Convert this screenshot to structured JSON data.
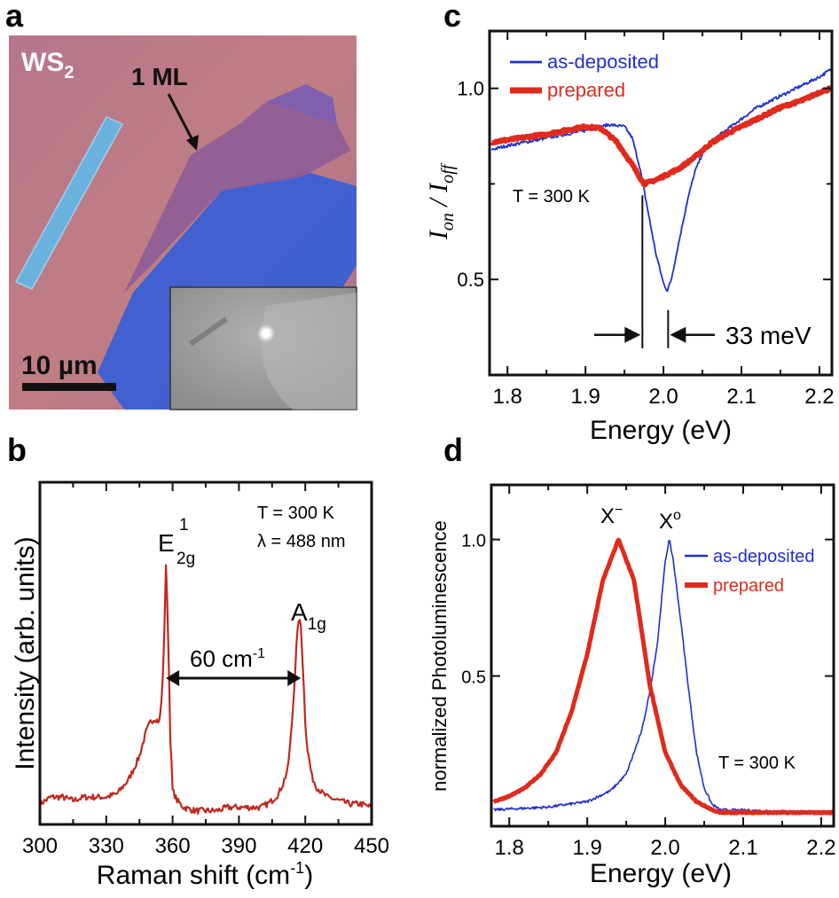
{
  "panel_labels": {
    "a": "a",
    "b": "b",
    "c": "c",
    "d": "d"
  },
  "photo": {
    "material_main": "WS",
    "material_sub": "2",
    "monolayer_label": "1 ML",
    "scale_bar_label": "10 µm",
    "colors": {
      "substrate": "#b97a8a",
      "thick_flake": "#3b5fd4",
      "monolayer": "#8b5a98",
      "stripe": "#6ab2de",
      "inset": "#9a9a9a"
    }
  },
  "colors": {
    "as_deposited": "#1f2fd0",
    "prepared": "#e02a1c",
    "raman": "#c0281e"
  },
  "chart_data": [
    {
      "panel": "b",
      "type": "line",
      "xlabel": "Raman shift (cm",
      "xlabel_sup": "-1",
      "xlabel_end": ")",
      "ylabel": "Intensity (arb. units)",
      "xlim": [
        300,
        450
      ],
      "ylim": [
        0,
        1
      ],
      "xticks": [
        "300",
        "330",
        "360",
        "390",
        "420",
        "450"
      ],
      "grid": false,
      "annotations": {
        "temp": "T = 300 K",
        "wavelength": "λ = 488 nm",
        "peak1_main": "E",
        "peak1_sup": "1",
        "peak1_sub": "2g",
        "peak2_main": "A",
        "peak2_sub": "1g",
        "separation_main": "60 cm",
        "separation_sup": "-1"
      },
      "series": [
        {
          "x": [
            300,
            305,
            310,
            315,
            320,
            325,
            330,
            335,
            340,
            343,
            345,
            348,
            350,
            352,
            354,
            355,
            356,
            357,
            358,
            359,
            360,
            362,
            365,
            370,
            375,
            380,
            385,
            390,
            395,
            400,
            403,
            405,
            408,
            410,
            412,
            413,
            414,
            415,
            416,
            417,
            418,
            419,
            420,
            421,
            423,
            425,
            428,
            430,
            435,
            440,
            445,
            450
          ],
          "y": [
            0.06,
            0.08,
            0.08,
            0.07,
            0.08,
            0.08,
            0.08,
            0.09,
            0.13,
            0.17,
            0.2,
            0.27,
            0.3,
            0.31,
            0.3,
            0.36,
            0.5,
            0.76,
            0.55,
            0.25,
            0.1,
            0.07,
            0.05,
            0.04,
            0.04,
            0.04,
            0.05,
            0.05,
            0.05,
            0.05,
            0.06,
            0.07,
            0.09,
            0.12,
            0.16,
            0.22,
            0.3,
            0.4,
            0.52,
            0.6,
            0.58,
            0.45,
            0.3,
            0.22,
            0.14,
            0.11,
            0.09,
            0.08,
            0.07,
            0.06,
            0.06,
            0.05
          ]
        }
      ]
    },
    {
      "panel": "c",
      "type": "line",
      "xlabel": "Energy (eV)",
      "ylabel_I1": "I",
      "ylabel_sub1": "on",
      "ylabel_sep": " / ",
      "ylabel_I2": "I",
      "ylabel_sub2": "off",
      "xlim": [
        1.777,
        2.216
      ],
      "ylim": [
        0.25,
        1.15
      ],
      "xticks": [
        "1.8",
        "1.9",
        "2.0",
        "2.1",
        "2.2"
      ],
      "yticks": [
        "0.5",
        "1.0"
      ],
      "grid": false,
      "legend_position": "top-left",
      "annotations": {
        "temp": "T = 300 K",
        "shift": "33 meV",
        "marker_x": [
          1.973,
          2.006
        ]
      },
      "series": [
        {
          "name": "as-deposited",
          "x": [
            1.78,
            1.8,
            1.85,
            1.9,
            1.93,
            1.95,
            1.96,
            1.97,
            1.98,
            1.99,
            2.0,
            2.005,
            2.01,
            2.02,
            2.03,
            2.04,
            2.05,
            2.06,
            2.08,
            2.1,
            2.12,
            2.15,
            2.18,
            2.2,
            2.215
          ],
          "y": [
            0.84,
            0.85,
            0.87,
            0.89,
            0.905,
            0.9,
            0.87,
            0.79,
            0.68,
            0.57,
            0.49,
            0.47,
            0.5,
            0.6,
            0.7,
            0.78,
            0.83,
            0.86,
            0.89,
            0.92,
            0.95,
            0.98,
            1.01,
            1.03,
            1.05
          ]
        },
        {
          "name": "prepared",
          "x": [
            1.78,
            1.8,
            1.85,
            1.9,
            1.92,
            1.94,
            1.96,
            1.975,
            1.99,
            2.0,
            2.02,
            2.04,
            2.06,
            2.08,
            2.1,
            2.12,
            2.15,
            2.18,
            2.2,
            2.215
          ],
          "y": [
            0.86,
            0.865,
            0.88,
            0.9,
            0.895,
            0.86,
            0.8,
            0.75,
            0.76,
            0.77,
            0.79,
            0.82,
            0.855,
            0.88,
            0.9,
            0.92,
            0.95,
            0.97,
            0.99,
            1.0
          ]
        }
      ]
    },
    {
      "panel": "d",
      "type": "line",
      "xlabel": "Energy (eV)",
      "ylabel": "normalized Photoluminescence",
      "xlim": [
        1.777,
        2.216
      ],
      "ylim": [
        -0.05,
        1.2
      ],
      "xticks": [
        "1.8",
        "1.9",
        "2.0",
        "2.1",
        "2.2"
      ],
      "yticks": [
        "0.5",
        "1.0"
      ],
      "grid": false,
      "legend_position": "top-right",
      "annotations": {
        "temp": "T = 300 K",
        "trion_main": "X",
        "trion_sup": "−",
        "exciton_main": "X",
        "exciton_sup": "o"
      },
      "series": [
        {
          "name": "as-deposited",
          "x": [
            1.78,
            1.85,
            1.9,
            1.93,
            1.95,
            1.97,
            1.98,
            1.99,
            2.0,
            2.005,
            2.01,
            2.02,
            2.03,
            2.04,
            2.05,
            2.06,
            2.07,
            2.216
          ],
          "y": [
            0.01,
            0.02,
            0.04,
            0.08,
            0.14,
            0.3,
            0.44,
            0.62,
            0.92,
            1.0,
            0.93,
            0.7,
            0.45,
            0.22,
            0.09,
            0.03,
            0.01,
            0.0
          ]
        },
        {
          "name": "prepared",
          "x": [
            1.78,
            1.8,
            1.82,
            1.84,
            1.86,
            1.88,
            1.9,
            1.92,
            1.94,
            1.96,
            1.98,
            2.0,
            2.02,
            2.04,
            2.06,
            2.07,
            2.216
          ],
          "y": [
            0.04,
            0.06,
            0.09,
            0.14,
            0.22,
            0.37,
            0.58,
            0.85,
            1.0,
            0.85,
            0.47,
            0.22,
            0.1,
            0.04,
            0.01,
            0.0,
            0.0
          ]
        }
      ]
    }
  ]
}
